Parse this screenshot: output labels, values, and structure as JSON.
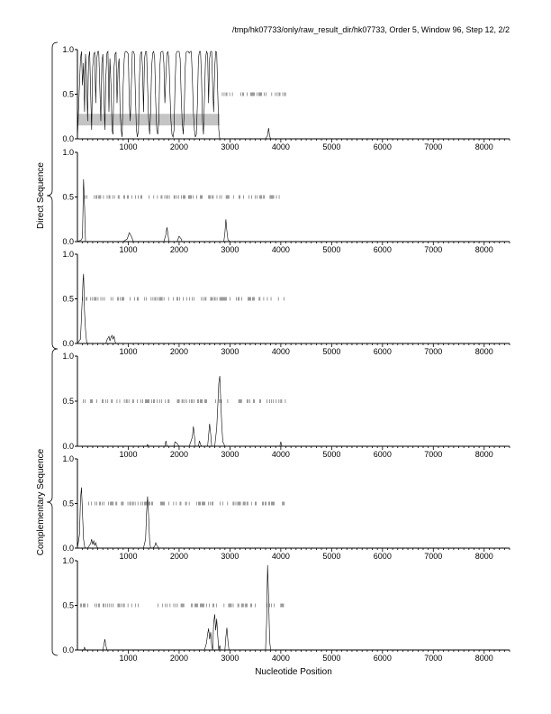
{
  "header": "/tmp/hk07733/only/raw_result_dir/hk07733, Order 5, Window 96, Step 12, 2/2",
  "xlabel": "Nucleotide Position",
  "groups": [
    {
      "label": "Direct Sequence",
      "panels": [
        0,
        1,
        2
      ]
    },
    {
      "label": "Complementary Sequence",
      "panels": [
        3,
        4,
        5
      ]
    }
  ],
  "chart_data": [
    {
      "type": "line",
      "xlim": [
        0,
        8500
      ],
      "ylim": [
        0,
        1
      ],
      "xticks": [
        1000,
        2000,
        3000,
        4000,
        5000,
        6000,
        7000,
        8000
      ],
      "yticks": [
        0.0,
        0.5,
        1.0
      ],
      "x": [
        0,
        60,
        80,
        100,
        120,
        140,
        160,
        180,
        200,
        220,
        240,
        260,
        280,
        300,
        320,
        340,
        360,
        380,
        400,
        420,
        440,
        460,
        480,
        500,
        520,
        540,
        560,
        580,
        600,
        620,
        640,
        660,
        680,
        700,
        720,
        740,
        760,
        780,
        800,
        820,
        840,
        860,
        880,
        900,
        920,
        940,
        960,
        980,
        1000,
        1020,
        1040,
        1060,
        1080,
        1100,
        1120,
        1140,
        1160,
        1180,
        1200,
        1220,
        1240,
        1260,
        1280,
        1300,
        1320,
        1340,
        1360,
        1380,
        1400,
        1420,
        1440,
        1460,
        1480,
        1500,
        1520,
        1540,
        1560,
        1580,
        1600,
        1620,
        1640,
        1660,
        1680,
        1700,
        1720,
        1740,
        1760,
        1780,
        1800,
        1820,
        1840,
        1860,
        1880,
        1900,
        1920,
        1940,
        1960,
        1980,
        2000,
        2020,
        2040,
        2060,
        2080,
        2100,
        2120,
        2140,
        2160,
        2180,
        2200,
        2220,
        2240,
        2260,
        2280,
        2300,
        2320,
        2340,
        2360,
        2380,
        2400,
        2420,
        2440,
        2460,
        2480,
        2500,
        2520,
        2540,
        2560,
        2580,
        2600,
        2620,
        2640,
        2660,
        2680,
        2700,
        2720,
        2740,
        2760,
        2780,
        2800,
        2850,
        3000,
        3500,
        3700,
        3740,
        3760,
        3780,
        3800,
        4000,
        8500
      ],
      "values": [
        0,
        0.9,
        0.98,
        0.6,
        0.85,
        0.3,
        0.95,
        0.7,
        0.2,
        0.9,
        0.98,
        0.5,
        0.1,
        0.8,
        0.95,
        0.97,
        0.4,
        0.9,
        0.98,
        0.98,
        0.6,
        0.2,
        0.85,
        0.95,
        0.5,
        0.1,
        0.7,
        0.96,
        0.98,
        0.3,
        0.9,
        0.6,
        0.1,
        0.05,
        0.8,
        0.95,
        0.97,
        0.4,
        0.8,
        0.9,
        0.3,
        0.1,
        0.02,
        0.6,
        0.9,
        0.98,
        0.98,
        0.97,
        0.95,
        0.4,
        0.2,
        0.6,
        0.98,
        0.98,
        0.95,
        0.5,
        0.1,
        0.02,
        0.1,
        0.7,
        0.95,
        0.98,
        0.8,
        0.3,
        0.9,
        0.98,
        0.98,
        0.6,
        0.2,
        0.05,
        0.3,
        0.8,
        0.96,
        0.98,
        0.9,
        0.4,
        0.1,
        0.05,
        0.2,
        0.8,
        0.97,
        0.98,
        0.98,
        0.85,
        0.4,
        0.7,
        0.95,
        0.98,
        0.9,
        0.5,
        0.2,
        0.05,
        0.02,
        0.1,
        0.6,
        0.95,
        0.98,
        0.98,
        0.98,
        0.9,
        0.5,
        0.2,
        0.05,
        0.3,
        0.8,
        0.97,
        0.98,
        0.98,
        0.96,
        0.98,
        0.98,
        0.7,
        0.3,
        0.1,
        0.02,
        0.05,
        0.4,
        0.9,
        0.98,
        0.98,
        0.7,
        0.2,
        0.05,
        0.5,
        0.9,
        0.98,
        0.95,
        0.4,
        0.9,
        0.98,
        0.98,
        0.6,
        0.3,
        0.8,
        0.98,
        0.97,
        0.5,
        0.1,
        0.0,
        0.0,
        0.0,
        0.0,
        0.0,
        0.04,
        0.12,
        0.03,
        0.0,
        0.0,
        0.0
      ],
      "ticks_y": 0.5,
      "ticks_start": 2850,
      "ticks_end": 4100,
      "ticks_density": 0.35,
      "band": {
        "from": 0,
        "to": 2800,
        "y0": 0.15,
        "y1": 0.28
      }
    },
    {
      "type": "line",
      "xlim": [
        0,
        8500
      ],
      "ylim": [
        0,
        1
      ],
      "xticks": [
        1000,
        2000,
        3000,
        4000,
        5000,
        6000,
        7000,
        8000
      ],
      "yticks": [
        0.0,
        0.5,
        1.0
      ],
      "x": [
        0,
        80,
        100,
        120,
        140,
        160,
        200,
        900,
        980,
        1020,
        1060,
        1100,
        1700,
        1740,
        1760,
        1780,
        1800,
        1960,
        2000,
        2040,
        2060,
        2880,
        2900,
        2920,
        2940,
        2960,
        3000,
        8500
      ],
      "values": [
        0,
        0.02,
        0.05,
        0.7,
        0.4,
        0.0,
        0.0,
        0.0,
        0.03,
        0.1,
        0.06,
        0.0,
        0.0,
        0.08,
        0.16,
        0.09,
        0.0,
        0.0,
        0.06,
        0.03,
        0.0,
        0.0,
        0.1,
        0.25,
        0.12,
        0.02,
        0.0,
        0.0
      ],
      "ticks_y": 0.5,
      "ticks_start": 80,
      "ticks_end": 4000,
      "ticks_density": 0.35,
      "band": null
    },
    {
      "type": "line",
      "xlim": [
        0,
        8500
      ],
      "ylim": [
        0,
        1
      ],
      "xticks": [
        1000,
        2000,
        3000,
        4000,
        5000,
        6000,
        7000,
        8000
      ],
      "yticks": [
        0.0,
        0.5,
        1.0
      ],
      "x": [
        0,
        60,
        80,
        100,
        110,
        120,
        130,
        140,
        160,
        180,
        200,
        220,
        560,
        580,
        600,
        620,
        640,
        660,
        680,
        700,
        720,
        740,
        760,
        8500
      ],
      "values": [
        0,
        0.05,
        0.3,
        0.55,
        0.7,
        0.78,
        0.6,
        0.35,
        0.15,
        0.02,
        0.0,
        0.0,
        0.0,
        0.04,
        0.06,
        0.08,
        0.03,
        0.07,
        0.09,
        0.05,
        0.08,
        0.02,
        0.0,
        0.0
      ],
      "ticks_y": 0.5,
      "ticks_start": 100,
      "ticks_end": 4100,
      "ticks_density": 0.35,
      "band": null
    },
    {
      "type": "line",
      "xlim": [
        0,
        8500
      ],
      "ylim": [
        0,
        1
      ],
      "xticks": [
        1000,
        2000,
        3000,
        4000,
        5000,
        6000,
        7000,
        8000
      ],
      "yticks": [
        0.0,
        0.5,
        1.0
      ],
      "x": [
        0,
        1360,
        1380,
        1400,
        1720,
        1740,
        1760,
        1900,
        1920,
        1960,
        2000,
        2200,
        2260,
        2280,
        2300,
        2320,
        2380,
        2400,
        2420,
        2440,
        2560,
        2580,
        2600,
        2620,
        2640,
        2700,
        2740,
        2760,
        2780,
        2800,
        2820,
        2840,
        2860,
        2900,
        3980,
        4000,
        4020,
        8500
      ],
      "values": [
        0,
        0.0,
        0.02,
        0.0,
        0.0,
        0.06,
        0.0,
        0.0,
        0.05,
        0.03,
        0.0,
        0.0,
        0.1,
        0.22,
        0.12,
        0.0,
        0.0,
        0.06,
        0.02,
        0.0,
        0.0,
        0.12,
        0.25,
        0.14,
        0.0,
        0.0,
        0.2,
        0.45,
        0.7,
        0.78,
        0.5,
        0.22,
        0.05,
        0.0,
        0.0,
        0.05,
        0.0,
        0.0
      ],
      "ticks_y": 0.5,
      "ticks_start": 40,
      "ticks_end": 4100,
      "ticks_density": 0.35,
      "band": null
    },
    {
      "type": "line",
      "xlim": [
        0,
        8500
      ],
      "ylim": [
        0,
        1
      ],
      "xticks": [
        1000,
        2000,
        3000,
        4000,
        5000,
        6000,
        7000,
        8000
      ],
      "yticks": [
        0.0,
        0.5,
        1.0
      ],
      "x": [
        0,
        40,
        60,
        80,
        100,
        120,
        140,
        160,
        200,
        260,
        280,
        300,
        320,
        340,
        360,
        380,
        400,
        1300,
        1340,
        1360,
        1380,
        1400,
        1420,
        1440,
        1480,
        1520,
        1540,
        1560,
        1600,
        8500
      ],
      "values": [
        0,
        0.15,
        0.55,
        0.68,
        0.4,
        0.1,
        0.02,
        0.0,
        0.0,
        0.05,
        0.1,
        0.04,
        0.08,
        0.03,
        0.06,
        0.02,
        0.0,
        0.0,
        0.1,
        0.4,
        0.58,
        0.35,
        0.08,
        0.0,
        0.0,
        0.02,
        0.06,
        0.03,
        0.0,
        0.0
      ],
      "ticks_y": 0.5,
      "ticks_start": 200,
      "ticks_end": 4100,
      "ticks_density": 0.35,
      "band": null
    },
    {
      "type": "line",
      "xlim": [
        0,
        8500
      ],
      "ylim": [
        0,
        1
      ],
      "xticks": [
        1000,
        2000,
        3000,
        4000,
        5000,
        6000,
        7000,
        8000
      ],
      "yticks": [
        0.0,
        0.5,
        1.0
      ],
      "x": [
        0,
        120,
        140,
        160,
        500,
        520,
        540,
        560,
        580,
        2500,
        2540,
        2560,
        2580,
        2600,
        2620,
        2640,
        2660,
        2680,
        2700,
        2720,
        2740,
        2760,
        2780,
        2800,
        2820,
        2900,
        2920,
        2940,
        2960,
        2980,
        3700,
        3720,
        3740,
        3760,
        3780,
        3800,
        8500
      ],
      "values": [
        0,
        0.0,
        0.03,
        0.0,
        0.0,
        0.06,
        0.12,
        0.05,
        0.0,
        0.0,
        0.08,
        0.18,
        0.24,
        0.12,
        0.2,
        0.05,
        0.0,
        0.3,
        0.4,
        0.22,
        0.35,
        0.15,
        0.0,
        0.05,
        0.0,
        0.0,
        0.15,
        0.25,
        0.1,
        0.0,
        0.0,
        0.3,
        0.95,
        0.6,
        0.1,
        0.0,
        0.0
      ],
      "ticks_y": 0.5,
      "ticks_start": 40,
      "ticks_end": 4100,
      "ticks_density": 0.35,
      "band": null
    }
  ]
}
